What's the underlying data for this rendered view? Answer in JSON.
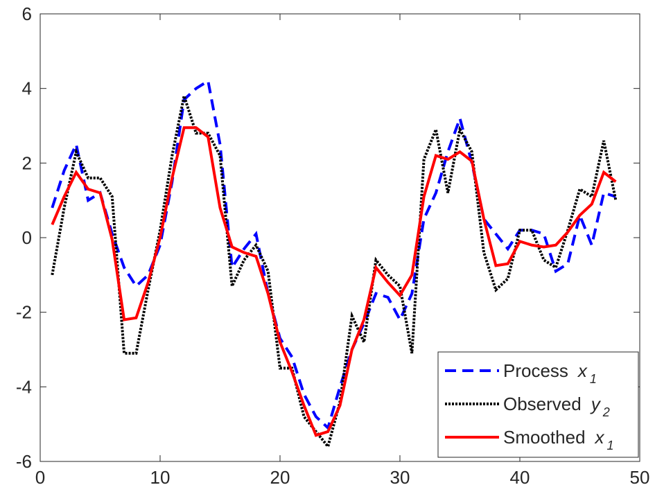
{
  "chart_data": {
    "type": "line",
    "x": [
      1,
      2,
      3,
      4,
      5,
      6,
      7,
      8,
      9,
      10,
      11,
      12,
      13,
      14,
      15,
      16,
      17,
      18,
      19,
      20,
      21,
      22,
      23,
      24,
      25,
      26,
      27,
      28,
      29,
      30,
      31,
      32,
      33,
      34,
      35,
      36,
      37,
      38,
      39,
      40,
      41,
      42,
      43,
      44,
      45,
      46,
      47,
      48
    ],
    "series": [
      {
        "name": "Process",
        "symbol": "x",
        "subscript": "1",
        "color": "#0000ff",
        "style": "dashed",
        "values": [
          0.8,
          1.8,
          2.5,
          1.0,
          1.2,
          0.1,
          -0.8,
          -1.3,
          -1.0,
          -0.2,
          1.5,
          3.7,
          4.0,
          4.2,
          2.5,
          -0.8,
          -0.3,
          0.1,
          -1.5,
          -2.7,
          -3.2,
          -4.2,
          -4.8,
          -5.1,
          -4.0,
          -3.0,
          -2.3,
          -1.5,
          -1.6,
          -2.2,
          -1.5,
          0.5,
          1.2,
          2.3,
          3.2,
          2.0,
          0.5,
          0.1,
          -0.3,
          0.2,
          0.2,
          0.1,
          -0.9,
          -0.7,
          0.6,
          -0.2,
          1.2,
          1.1
        ]
      },
      {
        "name": "Observed",
        "symbol": "y",
        "subscript": "2",
        "color": "#000000",
        "style": "dotted",
        "values": [
          -1.0,
          0.8,
          2.3,
          1.6,
          1.6,
          1.1,
          -3.1,
          -3.1,
          -1.4,
          0.2,
          2.2,
          3.8,
          2.8,
          2.8,
          2.2,
          -1.3,
          -0.6,
          -0.2,
          -0.9,
          -3.5,
          -3.5,
          -4.8,
          -5.2,
          -5.6,
          -4.4,
          -2.1,
          -2.8,
          -0.6,
          -1.0,
          -1.3,
          -3.1,
          2.1,
          2.9,
          1.2,
          2.9,
          2.3,
          -0.4,
          -1.4,
          -1.1,
          0.2,
          0.2,
          -0.6,
          -0.8,
          0.2,
          1.3,
          1.1,
          2.6,
          1.0
        ]
      },
      {
        "name": "Smoothed",
        "symbol": "x",
        "subscript": "1",
        "color": "#ff0000",
        "style": "solid",
        "values": [
          0.35,
          1.1,
          1.75,
          1.3,
          1.2,
          -0.05,
          -2.2,
          -2.15,
          -1.2,
          0.0,
          1.6,
          2.95,
          2.95,
          2.7,
          0.8,
          -0.25,
          -0.4,
          -0.5,
          -1.5,
          -2.8,
          -3.6,
          -4.5,
          -5.3,
          -5.2,
          -4.5,
          -3.0,
          -2.2,
          -0.8,
          -1.2,
          -1.55,
          -1.0,
          1.1,
          2.2,
          2.1,
          2.3,
          2.05,
          0.5,
          -0.75,
          -0.7,
          -0.1,
          -0.2,
          -0.25,
          -0.2,
          0.15,
          0.6,
          0.9,
          1.75,
          1.5
        ]
      }
    ],
    "xlim": [
      0,
      50
    ],
    "xticks": [
      0,
      10,
      20,
      30,
      40,
      50
    ],
    "ylim": [
      -6,
      6
    ],
    "yticks": [
      -6,
      -4,
      -2,
      0,
      2,
      4,
      6
    ],
    "legend": "lower right"
  }
}
